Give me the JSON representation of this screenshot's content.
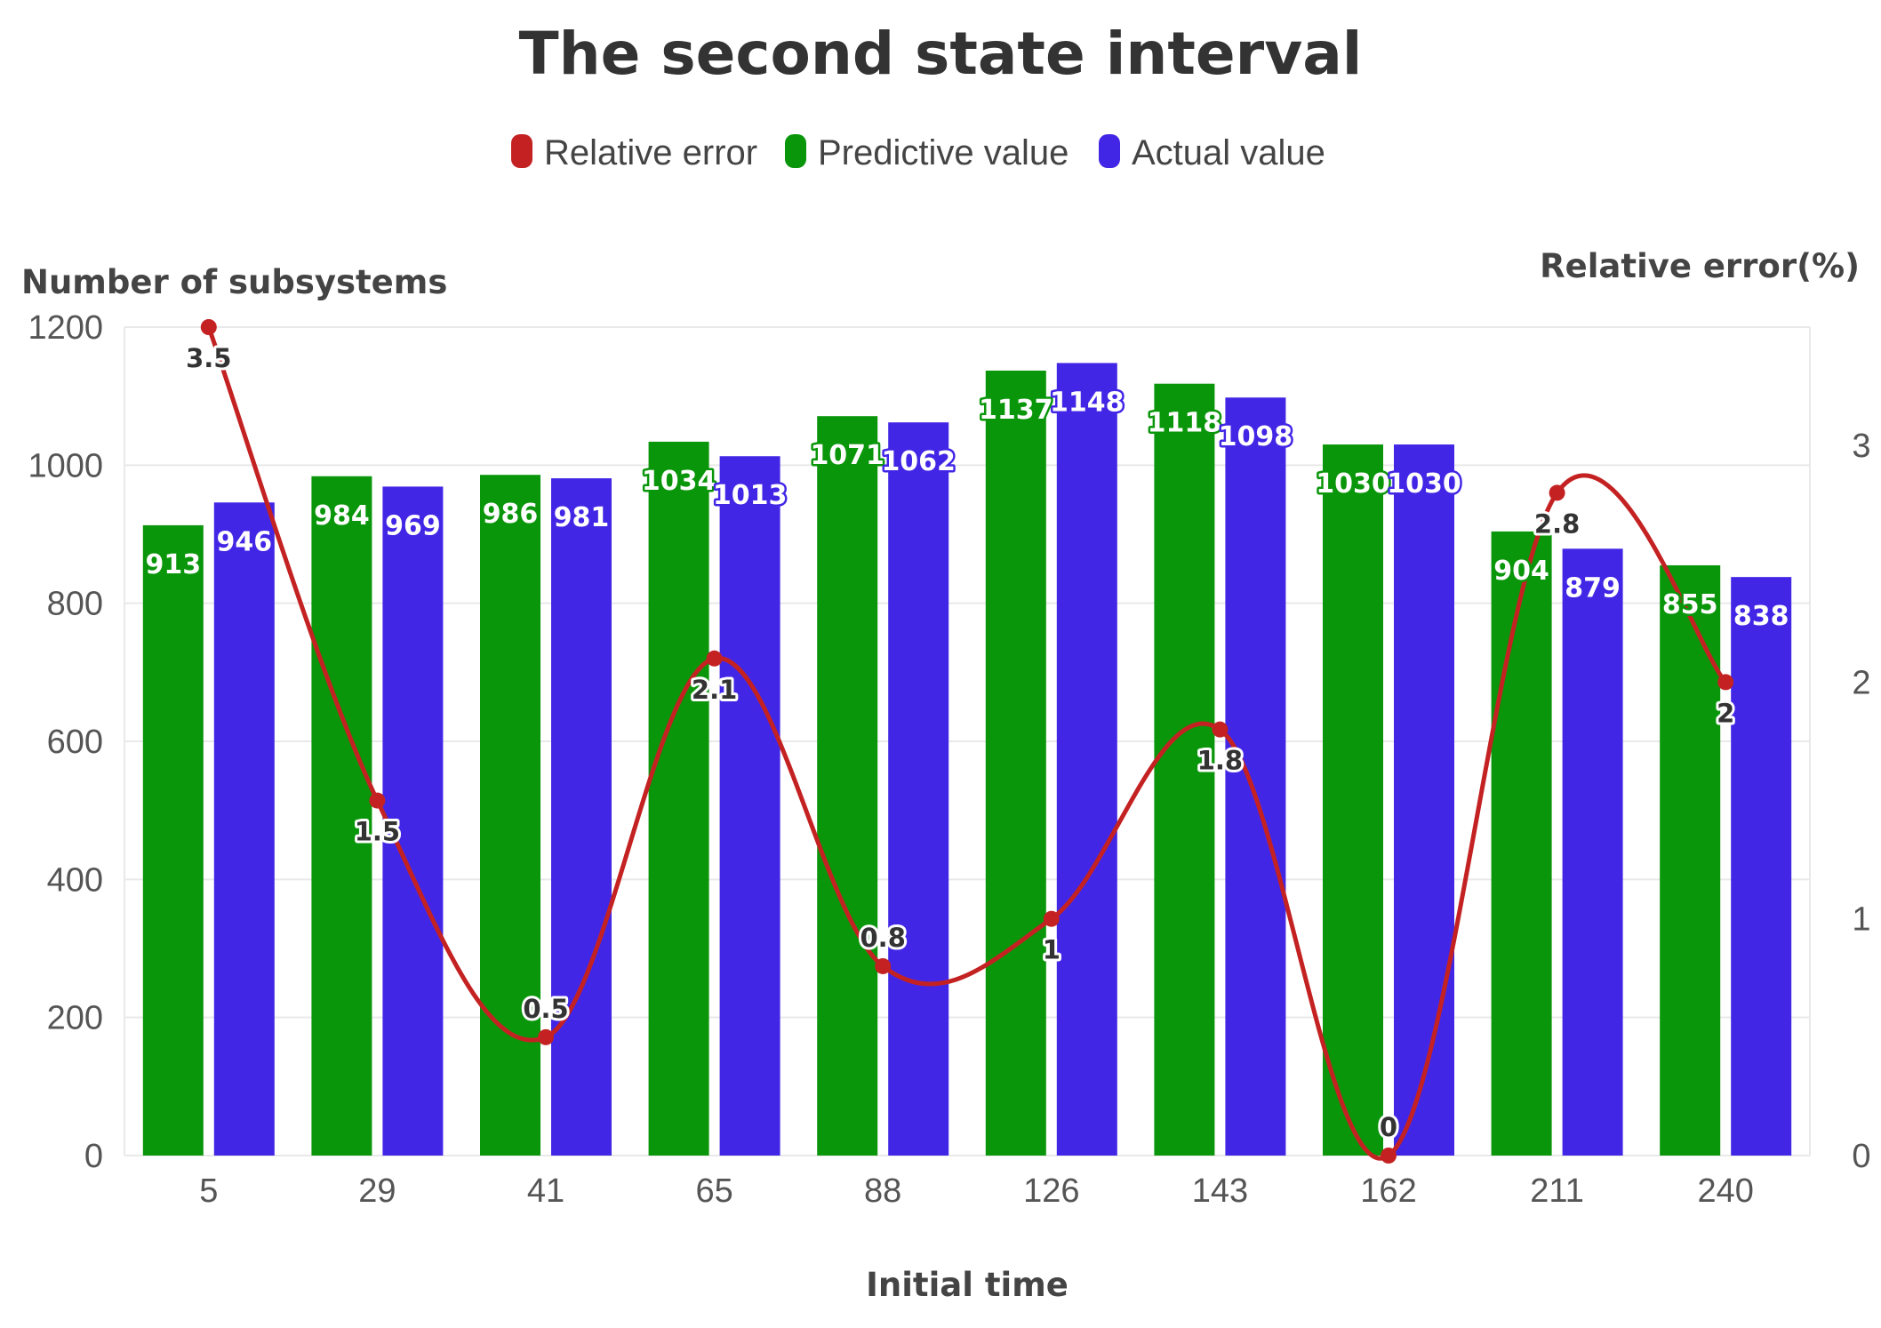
{
  "chart_data": {
    "type": "bar",
    "title": "The second state interval",
    "xlabel": "Initial time",
    "ylabel": "Number of subsystems",
    "y2label": "Relative error(%)",
    "categories": [
      "5",
      "29",
      "41",
      "65",
      "88",
      "126",
      "143",
      "162",
      "211",
      "240"
    ],
    "ylim": [
      0,
      1200
    ],
    "yticks": [
      0,
      200,
      400,
      600,
      800,
      1000,
      1200
    ],
    "y2lim": [
      0,
      3.5
    ],
    "y2ticks": [
      0,
      1,
      2,
      3
    ],
    "grid": true,
    "legend_position": "top-center",
    "series": [
      {
        "name": "Relative error",
        "kind": "line",
        "axis": "right",
        "color": "#c42222",
        "values": [
          3.5,
          1.5,
          0.5,
          2.1,
          0.8,
          1,
          1.8,
          0,
          2.8,
          2
        ]
      },
      {
        "name": "Predictive value",
        "kind": "bar",
        "axis": "left",
        "color": "#0a960a",
        "values": [
          913,
          984,
          986,
          1034,
          1071,
          1137,
          1118,
          1030,
          904,
          855
        ]
      },
      {
        "name": "Actual value",
        "kind": "bar",
        "axis": "left",
        "color": "#4226e6",
        "values": [
          946,
          969,
          981,
          1013,
          1062,
          1148,
          1098,
          1030,
          879,
          838
        ]
      }
    ]
  }
}
